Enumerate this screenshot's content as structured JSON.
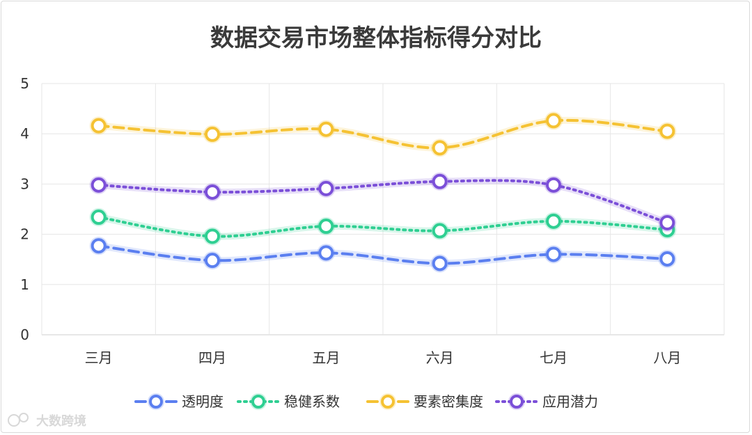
{
  "chart_data": {
    "type": "line",
    "title": "数据交易市场整体指标得分对比",
    "categories": [
      "三月",
      "四月",
      "五月",
      "六月",
      "七月",
      "八月"
    ],
    "ylim": [
      0,
      5
    ],
    "yticks": [
      "0",
      "1",
      "2",
      "3",
      "4",
      "5"
    ],
    "grid": true,
    "legend_position": "bottom",
    "series": [
      {
        "name": "透明度",
        "color": "#5b7ff0",
        "style": "dashed",
        "values": [
          1.77,
          1.48,
          1.63,
          1.42,
          1.6,
          1.51
        ]
      },
      {
        "name": "稳健系数",
        "color": "#2fcf92",
        "style": "dotted",
        "values": [
          2.34,
          1.96,
          2.16,
          2.07,
          2.26,
          2.09
        ]
      },
      {
        "name": "要素密集度",
        "color": "#f5c233",
        "style": "dashed",
        "values": [
          4.16,
          3.99,
          4.09,
          3.72,
          4.26,
          4.05
        ]
      },
      {
        "name": "应用潜力",
        "color": "#7b4fd8",
        "style": "dotted",
        "values": [
          2.98,
          2.84,
          2.91,
          3.05,
          2.98,
          2.23
        ]
      }
    ]
  },
  "watermark": "大数跨境"
}
